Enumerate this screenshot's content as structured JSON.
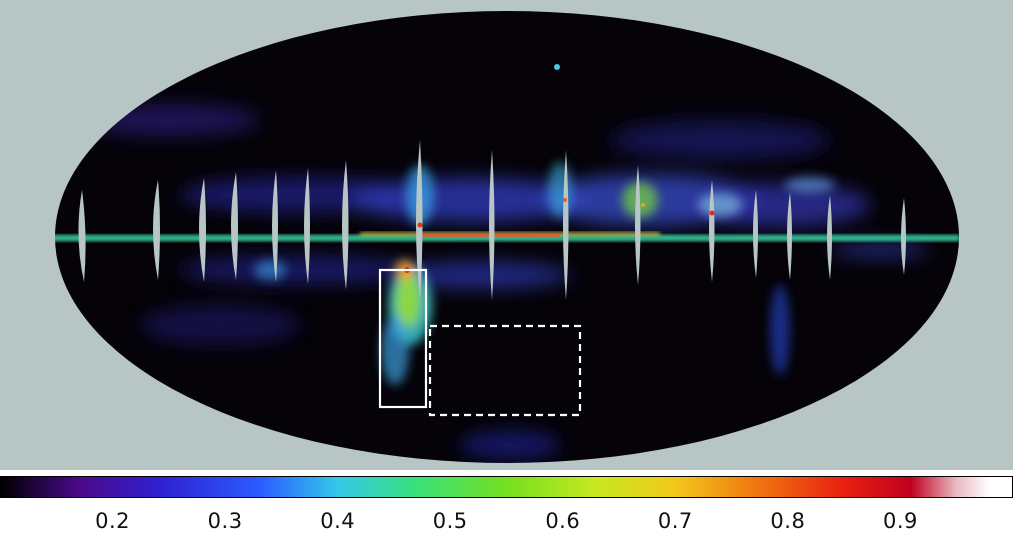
{
  "map": {
    "projection": "mollweide",
    "background_color": "#b7c5c5",
    "sky_color": "#050308"
  },
  "regions": [
    {
      "name": "solid-box",
      "style": "solid",
      "color": "#ffffff"
    },
    {
      "name": "dashed-box",
      "style": "dashed",
      "color": "#ffffff"
    }
  ],
  "colorbar": {
    "colormap": "spectral-like",
    "stops": [
      {
        "v": 0.1,
        "c": "#000000"
      },
      {
        "v": 0.17,
        "c": "#4a0a8a"
      },
      {
        "v": 0.24,
        "c": "#3020d0"
      },
      {
        "v": 0.33,
        "c": "#2a5cff"
      },
      {
        "v": 0.4,
        "c": "#35c8e8"
      },
      {
        "v": 0.47,
        "c": "#39e07a"
      },
      {
        "v": 0.55,
        "c": "#74e020"
      },
      {
        "v": 0.63,
        "c": "#c8e820"
      },
      {
        "v": 0.7,
        "c": "#f2c81a"
      },
      {
        "v": 0.77,
        "c": "#f07a10"
      },
      {
        "v": 0.85,
        "c": "#e82010"
      },
      {
        "v": 0.91,
        "c": "#c00020"
      },
      {
        "v": 0.95,
        "c": "#e8b8c0"
      },
      {
        "v": 0.98,
        "c": "#ffffff"
      }
    ],
    "range": [
      0.1,
      1.0
    ],
    "tick_values": [
      0.2,
      0.3,
      0.4,
      0.5,
      0.6,
      0.7,
      0.8,
      0.9
    ],
    "tick_labels": [
      "0.2",
      "0.3",
      "0.4",
      "0.5",
      "0.6",
      "0.7",
      "0.8",
      "0.9"
    ]
  }
}
